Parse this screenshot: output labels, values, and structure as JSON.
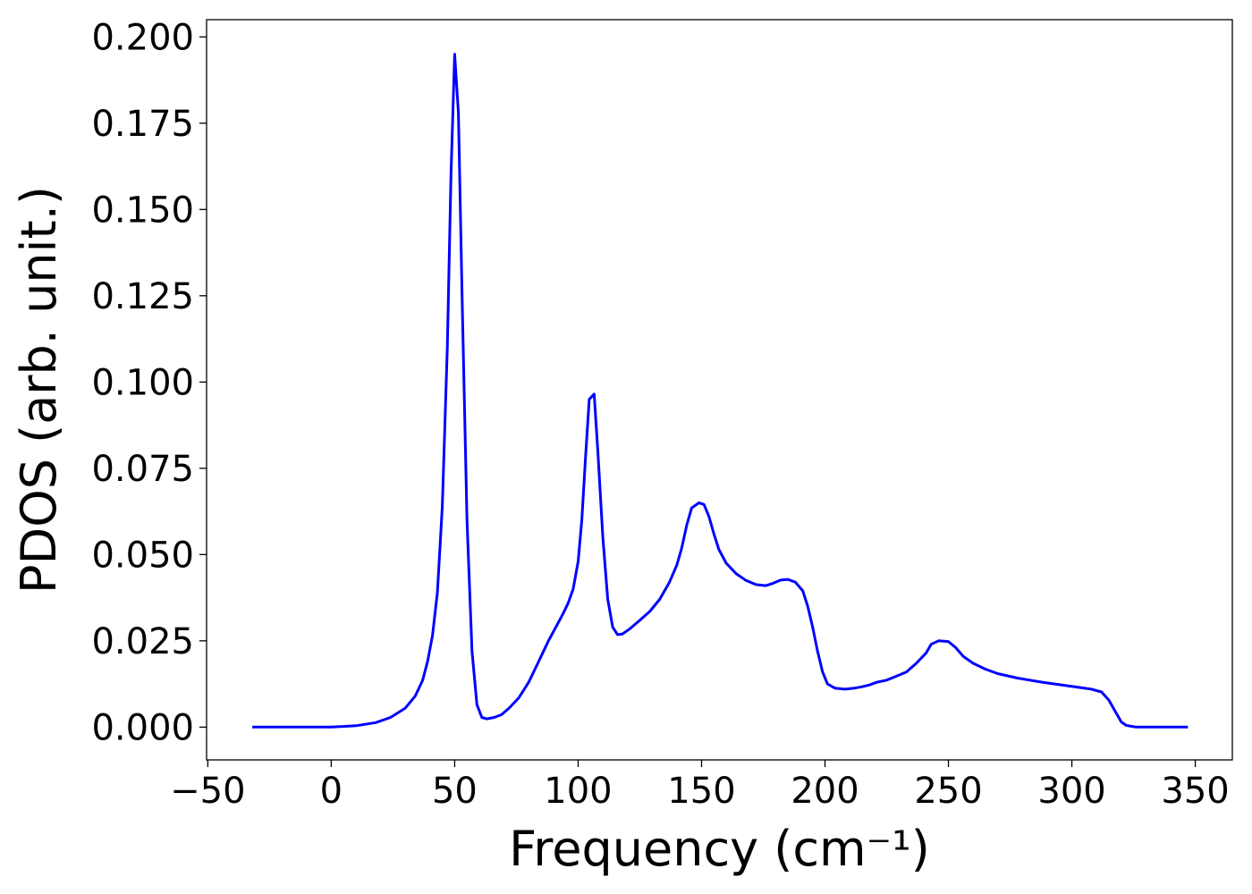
{
  "chart_data": {
    "type": "line",
    "title": "",
    "xlabel": "Frequency (cm⁻¹)",
    "ylabel": "PDOS (arb. unit.)",
    "xlim": [
      -50.5,
      365
    ],
    "ylim": [
      -0.0095,
      0.205
    ],
    "xticks": [
      -50,
      0,
      50,
      100,
      150,
      200,
      250,
      300,
      350
    ],
    "xtick_labels": [
      "−50",
      "0",
      "50",
      "100",
      "150",
      "200",
      "250",
      "300",
      "350"
    ],
    "yticks": [
      0.0,
      0.025,
      0.05,
      0.075,
      0.1,
      0.125,
      0.15,
      0.175,
      0.2
    ],
    "ytick_labels": [
      "0.000",
      "0.025",
      "0.050",
      "0.075",
      "0.100",
      "0.125",
      "0.150",
      "0.175",
      "0.200"
    ],
    "grid": false,
    "series": [
      {
        "color": "#0000ff",
        "points": [
          [
            -32,
            0.0
          ],
          [
            0,
            0.0
          ],
          [
            10,
            0.0004
          ],
          [
            18,
            0.0013
          ],
          [
            24,
            0.0028
          ],
          [
            30,
            0.0055
          ],
          [
            34,
            0.009
          ],
          [
            37,
            0.0135
          ],
          [
            39,
            0.019
          ],
          [
            41,
            0.0265
          ],
          [
            43,
            0.039
          ],
          [
            45,
            0.064
          ],
          [
            47,
            0.11
          ],
          [
            48.5,
            0.16
          ],
          [
            50,
            0.195
          ],
          [
            51.5,
            0.178
          ],
          [
            53,
            0.125
          ],
          [
            55,
            0.06
          ],
          [
            57,
            0.022
          ],
          [
            59,
            0.0065
          ],
          [
            61,
            0.0028
          ],
          [
            63,
            0.0024
          ],
          [
            66,
            0.0028
          ],
          [
            69,
            0.0036
          ],
          [
            72,
            0.0055
          ],
          [
            76,
            0.0085
          ],
          [
            80,
            0.013
          ],
          [
            84,
            0.019
          ],
          [
            88,
            0.025
          ],
          [
            91,
            0.029
          ],
          [
            94,
            0.033
          ],
          [
            96,
            0.036
          ],
          [
            98,
            0.04
          ],
          [
            100,
            0.048
          ],
          [
            101.5,
            0.06
          ],
          [
            103,
            0.078
          ],
          [
            104.5,
            0.095
          ],
          [
            106.5,
            0.0965
          ],
          [
            108,
            0.08
          ],
          [
            110,
            0.055
          ],
          [
            112,
            0.037
          ],
          [
            114,
            0.029
          ],
          [
            116,
            0.0268
          ],
          [
            118,
            0.027
          ],
          [
            121,
            0.0285
          ],
          [
            125,
            0.031
          ],
          [
            129,
            0.0335
          ],
          [
            133,
            0.037
          ],
          [
            137,
            0.042
          ],
          [
            140,
            0.047
          ],
          [
            142,
            0.052
          ],
          [
            144,
            0.0585
          ],
          [
            146,
            0.0635
          ],
          [
            149,
            0.065
          ],
          [
            151,
            0.0645
          ],
          [
            153,
            0.061
          ],
          [
            155,
            0.056
          ],
          [
            157,
            0.0515
          ],
          [
            160,
            0.0475
          ],
          [
            164,
            0.0445
          ],
          [
            168,
            0.0425
          ],
          [
            172,
            0.0413
          ],
          [
            176,
            0.041
          ],
          [
            179,
            0.0417
          ],
          [
            182,
            0.0426
          ],
          [
            185,
            0.0428
          ],
          [
            188,
            0.042
          ],
          [
            191,
            0.0395
          ],
          [
            193,
            0.035
          ],
          [
            195,
            0.029
          ],
          [
            197,
            0.022
          ],
          [
            199,
            0.016
          ],
          [
            201,
            0.0125
          ],
          [
            204,
            0.0113
          ],
          [
            208,
            0.011
          ],
          [
            212,
            0.0113
          ],
          [
            215,
            0.0117
          ],
          [
            218,
            0.0122
          ],
          [
            221,
            0.013
          ],
          [
            225,
            0.0136
          ],
          [
            229,
            0.0148
          ],
          [
            233,
            0.016
          ],
          [
            237,
            0.0185
          ],
          [
            241,
            0.0215
          ],
          [
            243,
            0.024
          ],
          [
            246,
            0.025
          ],
          [
            250,
            0.0248
          ],
          [
            253,
            0.023
          ],
          [
            256,
            0.0205
          ],
          [
            260,
            0.0185
          ],
          [
            265,
            0.0168
          ],
          [
            270,
            0.0155
          ],
          [
            278,
            0.0142
          ],
          [
            288,
            0.013
          ],
          [
            298,
            0.012
          ],
          [
            308,
            0.011
          ],
          [
            312,
            0.0102
          ],
          [
            315,
            0.0078
          ],
          [
            318,
            0.004
          ],
          [
            320,
            0.0015
          ],
          [
            322,
            0.0005
          ],
          [
            326,
            0.0
          ],
          [
            347,
            0.0
          ]
        ]
      }
    ]
  }
}
